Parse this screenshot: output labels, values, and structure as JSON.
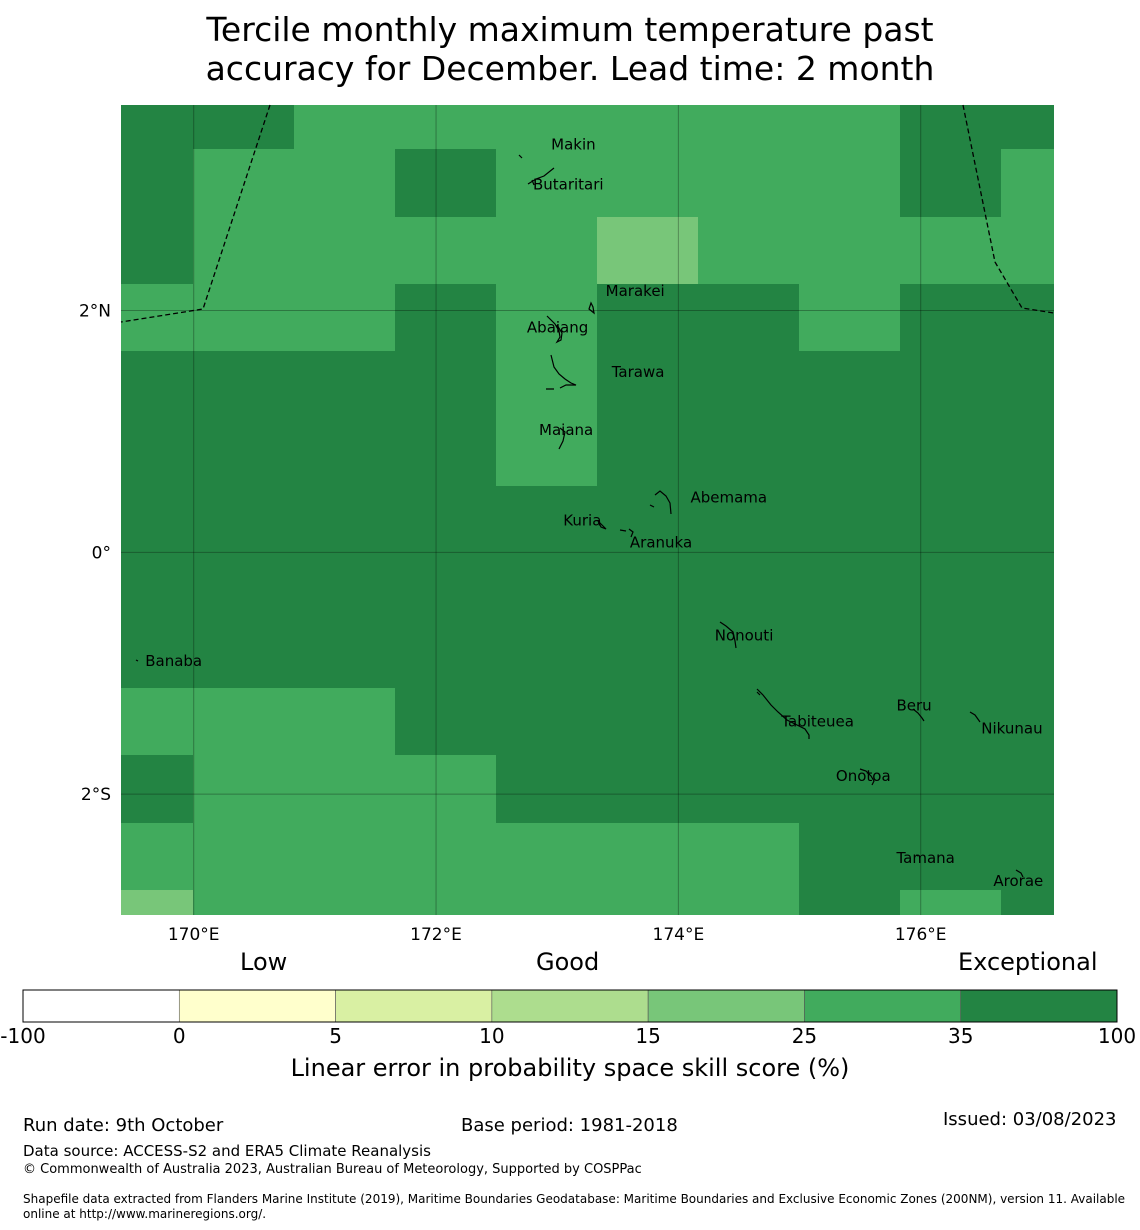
{
  "title_line1": "Tercile monthly maximum temperature past",
  "title_line2": "accuracy for December. Lead time: 2 month",
  "map": {
    "lon_range": [
      169.4,
      177.1
    ],
    "lat_range": [
      -3.0,
      3.7
    ],
    "x_ticks": [
      {
        "lon": 170,
        "label": "170°E"
      },
      {
        "lon": 172,
        "label": "172°E"
      },
      {
        "lon": 174,
        "label": "174°E"
      },
      {
        "lon": 176,
        "label": "176°E"
      }
    ],
    "y_ticks": [
      {
        "lat": 2,
        "label": "2°N"
      },
      {
        "lat": 0,
        "label": "0°"
      },
      {
        "lat": -2,
        "label": "2°S"
      }
    ],
    "places": [
      {
        "name": "Makin",
        "lon": 172.95,
        "lat": 3.33
      },
      {
        "name": "Butaritari",
        "lon": 172.8,
        "lat": 3.0
      },
      {
        "name": "Marakei",
        "lon": 173.4,
        "lat": 2.12
      },
      {
        "name": "Abaiang",
        "lon": 172.75,
        "lat": 1.82
      },
      {
        "name": "Tarawa",
        "lon": 173.45,
        "lat": 1.45
      },
      {
        "name": "Maiana",
        "lon": 172.85,
        "lat": 0.97
      },
      {
        "name": "Abemama",
        "lon": 174.1,
        "lat": 0.41
      },
      {
        "name": "Kuria",
        "lon": 173.05,
        "lat": 0.22
      },
      {
        "name": "Aranuka",
        "lon": 173.6,
        "lat": 0.04
      },
      {
        "name": "Banaba",
        "lon": 169.6,
        "lat": -0.94
      },
      {
        "name": "Nonouti",
        "lon": 174.3,
        "lat": -0.73
      },
      {
        "name": "Beru",
        "lon": 175.8,
        "lat": -1.31
      },
      {
        "name": "Tabiteuea",
        "lon": 174.85,
        "lat": -1.44
      },
      {
        "name": "Nikunau",
        "lon": 176.5,
        "lat": -1.5
      },
      {
        "name": "Onotoa",
        "lon": 175.3,
        "lat": -1.89
      },
      {
        "name": "Tamana",
        "lon": 175.8,
        "lat": -2.57
      },
      {
        "name": "Arorae",
        "lon": 176.6,
        "lat": -2.76
      }
    ]
  },
  "legend": {
    "categories": [
      {
        "label": "Low"
      },
      {
        "label": "Good"
      },
      {
        "label": "Exceptional"
      }
    ],
    "bins": [
      {
        "from": -100,
        "to": 0,
        "color": "#ffffff"
      },
      {
        "from": 0,
        "to": 5,
        "color": "#ffffcc"
      },
      {
        "from": 5,
        "to": 10,
        "color": "#d9f0a3"
      },
      {
        "from": 10,
        "to": 15,
        "color": "#addd8e"
      },
      {
        "from": 15,
        "to": 25,
        "color": "#78c679"
      },
      {
        "from": 25,
        "to": 35,
        "color": "#41ab5d"
      },
      {
        "from": 35,
        "to": 100,
        "color": "#238443"
      }
    ],
    "tick_labels": [
      "-100",
      "0",
      "5",
      "10",
      "15",
      "25",
      "35",
      "100"
    ],
    "axis_title": "Linear error in probability space skill score (%)"
  },
  "colors": {
    "c35_100": "#238443",
    "c25_35": "#41ab5d",
    "c15_25": "#78c679"
  },
  "footer": {
    "run_date": "Run date: 9th October",
    "base_period": "Base period: 1981-2018",
    "issued": "Issued: 03/08/2023",
    "data_source": "Data source: ACCESS-S2 and ERA5 Climate Reanalysis",
    "copyright": "© Commonwealth of Australia 2023, Australian Bureau of Meteorology, Supported by COSPPac",
    "shapefile_line1": "Shapefile data extracted from Flanders Marine Institute (2019), Maritime Boundaries Geodatabase: Maritime Boundaries and Exclusive Economic Zones (200NM), version 11. Available",
    "shapefile_line2": "online at http://www.marineregions.org/."
  }
}
